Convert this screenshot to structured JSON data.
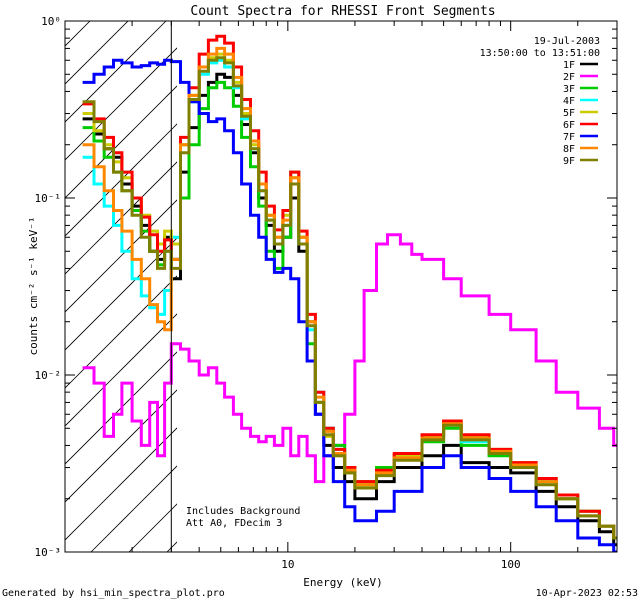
{
  "chart_data": {
    "type": "line",
    "title": "Count Spectra for RHESSI Front Segments",
    "xlabel": "Energy (keV)",
    "ylabel": "counts cm⁻² s⁻¹ keV⁻¹",
    "xscale": "log",
    "yscale": "log",
    "xlim": [
      1.0,
      300.0
    ],
    "ylim": [
      0.001,
      1.0
    ],
    "x_ticks": [
      {
        "value": 10,
        "label": "10"
      },
      {
        "value": 100,
        "label": "100"
      }
    ],
    "y_ticks": [
      {
        "value": 0.001,
        "label": "10⁻³"
      },
      {
        "value": 0.01,
        "label": "10⁻²"
      },
      {
        "value": 0.1,
        "label": "10⁻¹"
      },
      {
        "value": 1.0,
        "label": "10⁰"
      }
    ],
    "date": "19-Jul-2003",
    "time_range": "13:50:00 to 13:51:00",
    "annotations": [
      "Includes Background",
      "Att A0, FDecim 3"
    ],
    "hatched_below_keV": 3.0,
    "footer_left": "Generated by hsi_min_spectra_plot.pro",
    "footer_right": "10-Apr-2023 02:53",
    "series": [
      {
        "name": "1F",
        "color": "#000000",
        "x": [
          1.2,
          1.35,
          1.5,
          1.65,
          1.8,
          2.0,
          2.2,
          2.4,
          2.6,
          2.8,
          3.0,
          3.3,
          3.6,
          4.0,
          4.4,
          4.8,
          5.2,
          5.7,
          6.2,
          6.8,
          7.4,
          8.0,
          8.7,
          9.5,
          10.3,
          11.2,
          12.2,
          13.3,
          14.5,
          16,
          18,
          20,
          25,
          30,
          40,
          50,
          60,
          80,
          100,
          130,
          160,
          200,
          250,
          290
        ],
        "y": [
          0.28,
          0.23,
          0.19,
          0.17,
          0.12,
          0.09,
          0.07,
          0.05,
          0.045,
          0.06,
          0.035,
          0.14,
          0.25,
          0.38,
          0.45,
          0.5,
          0.48,
          0.38,
          0.26,
          0.18,
          0.1,
          0.07,
          0.05,
          0.06,
          0.1,
          0.05,
          0.02,
          0.006,
          0.004,
          0.003,
          0.0025,
          0.002,
          0.0025,
          0.003,
          0.0035,
          0.004,
          0.0032,
          0.003,
          0.0028,
          0.0022,
          0.0018,
          0.0015,
          0.0013,
          0.0011
        ]
      },
      {
        "name": "2F",
        "color": "#ff00ff",
        "x": [
          1.2,
          1.35,
          1.5,
          1.65,
          1.8,
          2.0,
          2.2,
          2.4,
          2.6,
          2.8,
          3.0,
          3.3,
          3.6,
          4.0,
          4.4,
          4.8,
          5.2,
          5.7,
          6.2,
          6.8,
          7.4,
          8.0,
          8.7,
          9.5,
          10.3,
          11.2,
          12.2,
          13.3,
          14.5,
          16,
          18,
          20,
          22,
          25,
          28,
          32,
          36,
          40,
          50,
          60,
          80,
          100,
          130,
          160,
          200,
          250,
          290
        ],
        "y": [
          0.011,
          0.009,
          0.0045,
          0.006,
          0.009,
          0.0055,
          0.004,
          0.007,
          0.0035,
          0.009,
          0.015,
          0.014,
          0.012,
          0.01,
          0.011,
          0.009,
          0.0075,
          0.006,
          0.005,
          0.0045,
          0.0042,
          0.0045,
          0.004,
          0.005,
          0.0035,
          0.0045,
          0.0035,
          0.0025,
          0.0035,
          0.004,
          0.006,
          0.012,
          0.03,
          0.055,
          0.062,
          0.055,
          0.048,
          0.045,
          0.035,
          0.028,
          0.022,
          0.018,
          0.012,
          0.008,
          0.0065,
          0.005,
          0.004
        ]
      },
      {
        "name": "3F",
        "color": "#00cc00",
        "x": [
          1.2,
          1.35,
          1.5,
          1.65,
          1.8,
          2.0,
          2.2,
          2.4,
          2.6,
          2.8,
          3.0,
          3.3,
          3.6,
          4.0,
          4.4,
          4.8,
          5.2,
          5.7,
          6.2,
          6.8,
          7.4,
          8.0,
          8.7,
          9.5,
          10.3,
          11.2,
          12.2,
          13.3,
          14.5,
          16,
          18,
          20,
          25,
          30,
          40,
          50,
          60,
          80,
          100,
          130,
          160,
          200,
          250,
          290
        ],
        "y": [
          0.25,
          0.21,
          0.17,
          0.14,
          0.11,
          0.085,
          0.065,
          0.05,
          0.042,
          0.05,
          0.045,
          0.1,
          0.2,
          0.32,
          0.42,
          0.45,
          0.42,
          0.33,
          0.22,
          0.15,
          0.09,
          0.05,
          0.04,
          0.06,
          0.14,
          0.06,
          0.015,
          0.007,
          0.005,
          0.004,
          0.003,
          0.0025,
          0.003,
          0.0035,
          0.0042,
          0.005,
          0.004,
          0.0035,
          0.003,
          0.0025,
          0.002,
          0.0017,
          0.0014,
          0.0012
        ]
      },
      {
        "name": "4F",
        "color": "#00ffff",
        "x": [
          1.2,
          1.35,
          1.5,
          1.65,
          1.8,
          2.0,
          2.2,
          2.4,
          2.6,
          2.8,
          3.0,
          3.3,
          3.6,
          4.0,
          4.4,
          4.8,
          5.2,
          5.7,
          6.2,
          6.8,
          7.4,
          8.0,
          8.7,
          9.5,
          10.3,
          11.2,
          12.2,
          13.3,
          14.5,
          16,
          18,
          20,
          25,
          30,
          40,
          50,
          60,
          80,
          100,
          130,
          160,
          200,
          250,
          290
        ],
        "y": [
          0.17,
          0.12,
          0.09,
          0.07,
          0.05,
          0.035,
          0.028,
          0.024,
          0.022,
          0.03,
          0.06,
          0.2,
          0.35,
          0.5,
          0.58,
          0.6,
          0.55,
          0.42,
          0.28,
          0.19,
          0.11,
          0.075,
          0.055,
          0.07,
          0.12,
          0.055,
          0.018,
          0.008,
          0.005,
          0.0038,
          0.003,
          0.0024,
          0.0028,
          0.0034,
          0.0045,
          0.0052,
          0.0042,
          0.0036,
          0.003,
          0.0025,
          0.0021,
          0.0017,
          0.0014,
          0.0012
        ]
      },
      {
        "name": "5F",
        "color": "#cccc00",
        "x": [
          1.2,
          1.35,
          1.5,
          1.65,
          1.8,
          2.0,
          2.2,
          2.4,
          2.6,
          2.8,
          3.0,
          3.3,
          3.6,
          4.0,
          4.4,
          4.8,
          5.2,
          5.7,
          6.2,
          6.8,
          7.4,
          8.0,
          8.7,
          9.5,
          10.3,
          11.2,
          12.2,
          13.3,
          14.5,
          16,
          18,
          20,
          25,
          30,
          40,
          50,
          60,
          80,
          100,
          130,
          160,
          200,
          250,
          290
        ],
        "y": [
          0.3,
          0.24,
          0.2,
          0.16,
          0.13,
          0.1,
          0.08,
          0.065,
          0.055,
          0.065,
          0.055,
          0.2,
          0.38,
          0.55,
          0.62,
          0.65,
          0.6,
          0.45,
          0.3,
          0.2,
          0.12,
          0.08,
          0.06,
          0.08,
          0.13,
          0.06,
          0.02,
          0.007,
          0.0045,
          0.0035,
          0.0028,
          0.0024,
          0.0028,
          0.0035,
          0.0045,
          0.0055,
          0.0045,
          0.0038,
          0.0032,
          0.0026,
          0.0021,
          0.0017,
          0.0014,
          0.0012
        ]
      },
      {
        "name": "6F",
        "color": "#ff0000",
        "x": [
          1.2,
          1.35,
          1.5,
          1.65,
          1.8,
          2.0,
          2.2,
          2.4,
          2.6,
          2.8,
          3.0,
          3.3,
          3.6,
          4.0,
          4.4,
          4.8,
          5.2,
          5.7,
          6.2,
          6.8,
          7.4,
          8.0,
          8.7,
          9.5,
          10.3,
          11.2,
          12.2,
          13.3,
          14.5,
          16,
          18,
          20,
          25,
          30,
          40,
          50,
          60,
          80,
          100,
          130,
          160,
          200,
          250,
          290
        ],
        "y": [
          0.34,
          0.28,
          0.22,
          0.18,
          0.14,
          0.1,
          0.078,
          0.062,
          0.05,
          0.058,
          0.045,
          0.22,
          0.42,
          0.65,
          0.78,
          0.82,
          0.75,
          0.55,
          0.36,
          0.24,
          0.14,
          0.09,
          0.066,
          0.085,
          0.14,
          0.065,
          0.022,
          0.008,
          0.005,
          0.0038,
          0.003,
          0.0025,
          0.0029,
          0.0036,
          0.0046,
          0.0055,
          0.0046,
          0.0038,
          0.0032,
          0.0026,
          0.0021,
          0.0017,
          0.0014,
          0.0012
        ]
      },
      {
        "name": "7F",
        "color": "#0000ff",
        "x": [
          1.2,
          1.35,
          1.5,
          1.65,
          1.8,
          2.0,
          2.2,
          2.4,
          2.6,
          2.8,
          3.0,
          3.3,
          3.6,
          4.0,
          4.4,
          4.8,
          5.2,
          5.7,
          6.2,
          6.8,
          7.4,
          8.0,
          8.7,
          9.5,
          10.3,
          11.2,
          12.2,
          13.3,
          14.5,
          16,
          18,
          20,
          25,
          30,
          40,
          50,
          60,
          80,
          100,
          130,
          160,
          200,
          250,
          290
        ],
        "y": [
          0.45,
          0.5,
          0.55,
          0.6,
          0.58,
          0.55,
          0.56,
          0.58,
          0.57,
          0.6,
          0.59,
          0.45,
          0.35,
          0.3,
          0.27,
          0.28,
          0.24,
          0.18,
          0.12,
          0.08,
          0.06,
          0.045,
          0.038,
          0.04,
          0.035,
          0.02,
          0.012,
          0.006,
          0.0035,
          0.0025,
          0.0018,
          0.0015,
          0.0017,
          0.0022,
          0.003,
          0.0035,
          0.003,
          0.0026,
          0.0022,
          0.0018,
          0.0015,
          0.0012,
          0.0011,
          0.001
        ]
      },
      {
        "name": "8F",
        "color": "#ff8800",
        "x": [
          1.2,
          1.35,
          1.5,
          1.65,
          1.8,
          2.0,
          2.2,
          2.4,
          2.6,
          2.8,
          3.0,
          3.3,
          3.6,
          4.0,
          4.4,
          4.8,
          5.2,
          5.7,
          6.2,
          6.8,
          7.4,
          8.0,
          8.7,
          9.5,
          10.3,
          11.2,
          12.2,
          13.3,
          14.5,
          16,
          18,
          20,
          25,
          30,
          40,
          50,
          60,
          80,
          100,
          130,
          160,
          200,
          250,
          290
        ],
        "y": [
          0.2,
          0.15,
          0.11,
          0.085,
          0.065,
          0.045,
          0.035,
          0.025,
          0.02,
          0.018,
          0.045,
          0.2,
          0.38,
          0.55,
          0.65,
          0.7,
          0.65,
          0.48,
          0.32,
          0.21,
          0.12,
          0.08,
          0.06,
          0.075,
          0.13,
          0.06,
          0.02,
          0.0075,
          0.0048,
          0.0036,
          0.0029,
          0.0024,
          0.0028,
          0.0034,
          0.0044,
          0.0053,
          0.0044,
          0.0037,
          0.0031,
          0.0025,
          0.002,
          0.0016,
          0.0014,
          0.0012
        ]
      },
      {
        "name": "9F",
        "color": "#808000",
        "x": [
          1.2,
          1.35,
          1.5,
          1.65,
          1.8,
          2.0,
          2.2,
          2.4,
          2.6,
          2.8,
          3.0,
          3.3,
          3.6,
          4.0,
          4.4,
          4.8,
          5.2,
          5.7,
          6.2,
          6.8,
          7.4,
          8.0,
          8.7,
          9.5,
          10.3,
          11.2,
          12.2,
          13.3,
          14.5,
          16,
          18,
          20,
          25,
          30,
          40,
          50,
          60,
          80,
          100,
          130,
          160,
          200,
          250,
          290
        ],
        "y": [
          0.35,
          0.27,
          0.19,
          0.14,
          0.11,
          0.08,
          0.06,
          0.05,
          0.04,
          0.05,
          0.04,
          0.18,
          0.36,
          0.52,
          0.6,
          0.62,
          0.58,
          0.43,
          0.29,
          0.19,
          0.11,
          0.075,
          0.055,
          0.07,
          0.12,
          0.055,
          0.019,
          0.007,
          0.0046,
          0.0035,
          0.0028,
          0.0023,
          0.0027,
          0.0033,
          0.0043,
          0.0052,
          0.0043,
          0.0036,
          0.003,
          0.0024,
          0.002,
          0.0016,
          0.0014,
          0.0012
        ]
      }
    ]
  }
}
